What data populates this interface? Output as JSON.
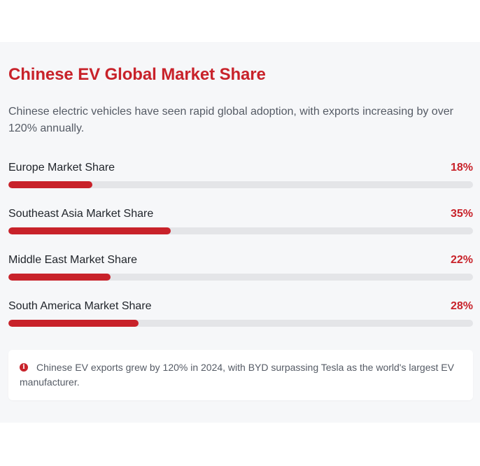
{
  "card": {
    "title": "Chinese EV Global Market Share",
    "description": "Chinese electric vehicles have seen rapid global adoption, with exports increasing by over 120% annually."
  },
  "colors": {
    "accent": "#c8222a",
    "track": "#e4e5e8",
    "panel_background": "#f6f7f9"
  },
  "metrics": [
    {
      "label": "Europe Market Share",
      "value_text": "18%",
      "percent": 18
    },
    {
      "label": "Southeast Asia Market Share",
      "value_text": "35%",
      "percent": 35
    },
    {
      "label": "Middle East Market Share",
      "value_text": "22%",
      "percent": 22
    },
    {
      "label": "South America Market Share",
      "value_text": "28%",
      "percent": 28
    }
  ],
  "note": {
    "icon": "info-circle-icon",
    "text": "Chinese EV exports grew by 120% in 2024, with BYD surpassing Tesla as the world's largest EV manufacturer."
  }
}
